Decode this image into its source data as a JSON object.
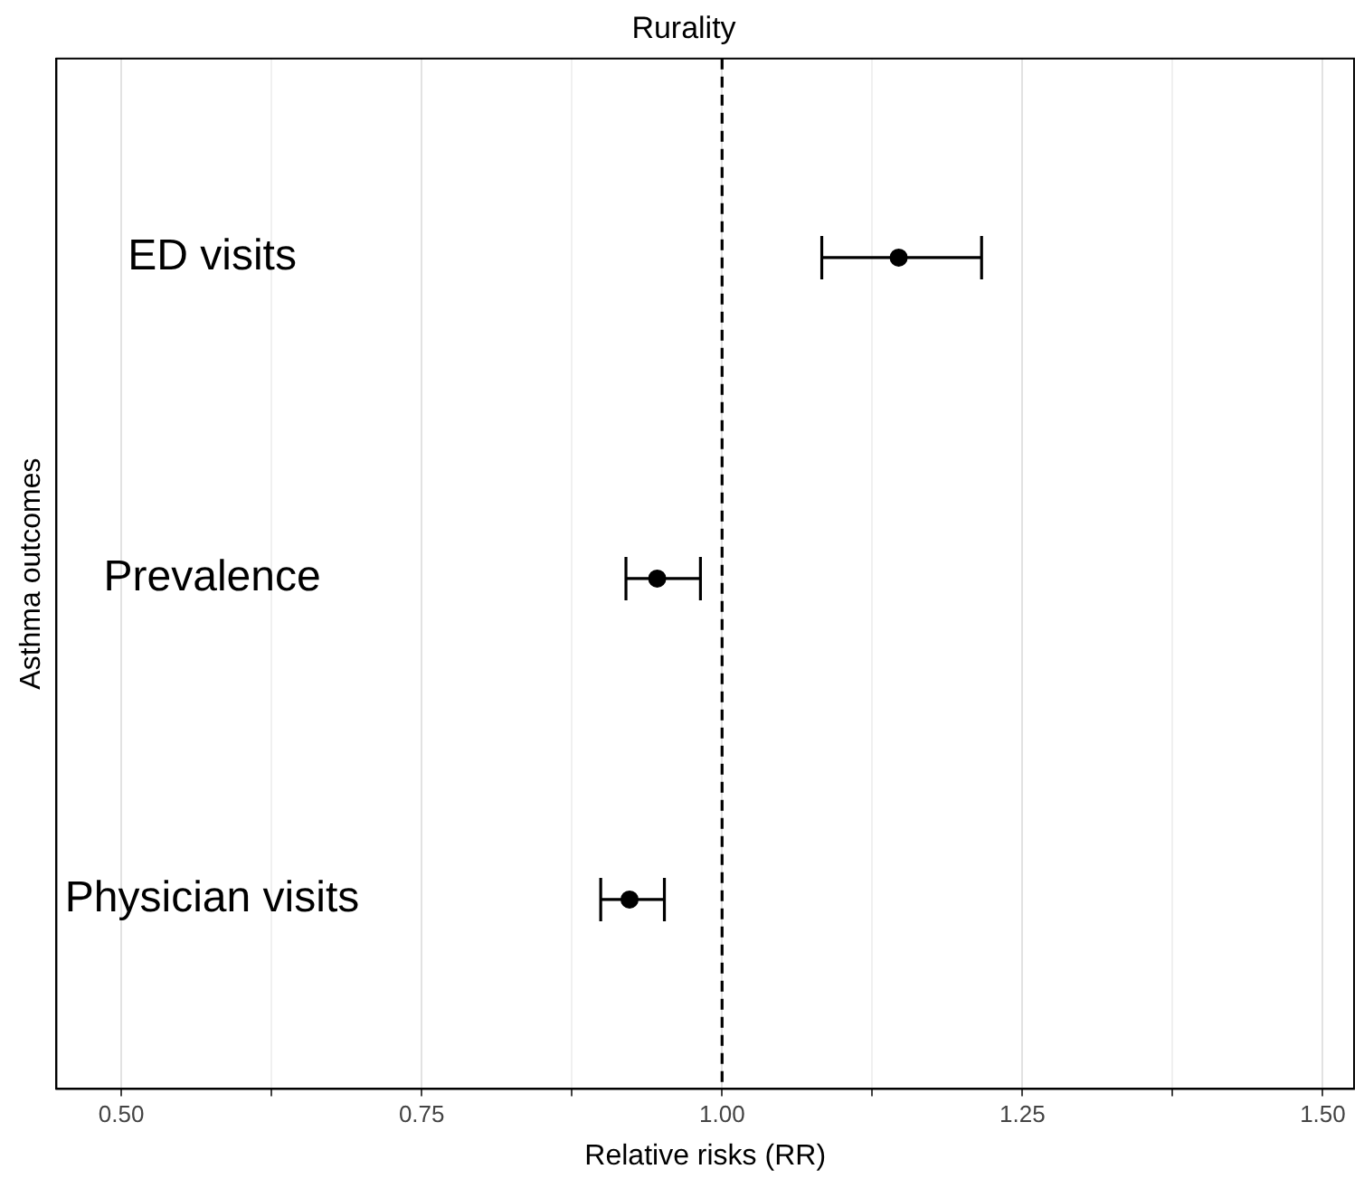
{
  "chart_data": {
    "type": "scatter",
    "title": "Rurality",
    "xlabel": "Relative risks (RR)",
    "ylabel": "Asthma outcomes",
    "categories": [
      "ED visits",
      "Prevalence",
      "Physician visits"
    ],
    "orientation": "horizontal",
    "values": [
      1.147,
      0.946,
      0.923
    ],
    "errors": [
      [
        1.083,
        1.216
      ],
      [
        0.92,
        0.982
      ],
      [
        0.899,
        0.952
      ]
    ],
    "color": "#000000",
    "marker": "circle",
    "xlim": [
      0.446,
      1.526
    ],
    "xticks": [
      {
        "value": 0.5,
        "label": "0.50"
      },
      {
        "value": 0.625,
        "label": null
      },
      {
        "value": 0.75,
        "label": "0.75"
      },
      {
        "value": 0.875,
        "label": null
      },
      {
        "value": 1,
        "label": "1.00"
      },
      {
        "value": 1.125,
        "label": null
      },
      {
        "value": 1.25,
        "label": "1.25"
      },
      {
        "value": 1.375,
        "label": null
      },
      {
        "value": 1.5,
        "label": "1.50"
      }
    ],
    "grid": "x",
    "ref_lines": [
      {
        "axis": "x",
        "value": 1,
        "color": "#000000",
        "line_style": "dashed"
      }
    ]
  }
}
